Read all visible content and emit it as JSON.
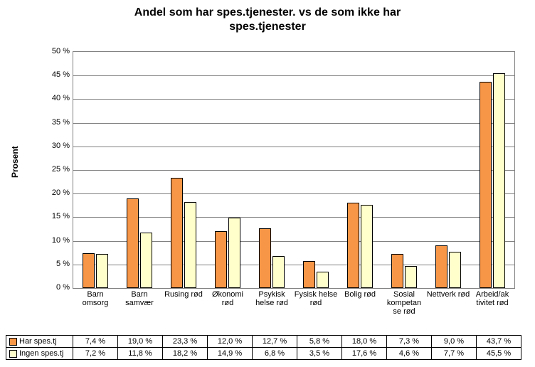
{
  "chart": {
    "type": "bar",
    "title_line1": "Andel som har spes.tjenester. vs de som ikke har",
    "title_line2": "spes.tjenester",
    "title_fontsize": 16,
    "ylabel": "Prosent",
    "ylim": [
      0,
      50
    ],
    "ytick_step": 5,
    "background_color": "#ffffff",
    "grid_color": "#808080",
    "categories": [
      "Barn omsorg",
      "Barn samvær",
      "Rusing rød",
      "Økonomi rød",
      "Psykisk helse rød",
      "Fysisk helse rød",
      "Bolig rød",
      "Sosial kompetan se rød",
      "Nettverk rød",
      "Arbeid/ak tivitet rød"
    ],
    "series": [
      {
        "name": "Har spes.tj",
        "color": "#f79646",
        "border": "#000000",
        "values": [
          7.4,
          19.0,
          23.3,
          12.0,
          12.7,
          5.8,
          18.0,
          7.3,
          9.0,
          43.7
        ],
        "labels": [
          "7,4 %",
          "19,0 %",
          "23,3 %",
          "12,0 %",
          "12,7 %",
          "5,8 %",
          "18,0 %",
          "7,3 %",
          "9,0 %",
          "43,7 %"
        ]
      },
      {
        "name": "Ingen spes.tj",
        "color": "#ffffcc",
        "border": "#000000",
        "values": [
          7.2,
          11.8,
          18.2,
          14.9,
          6.8,
          3.5,
          17.6,
          4.6,
          7.7,
          45.5
        ],
        "labels": [
          "7,2 %",
          "11,8 %",
          "18,2 %",
          "14,9 %",
          "6,8 %",
          "3,5 %",
          "17,6 %",
          "4,6 %",
          "7,7 %",
          "45,5 %"
        ]
      }
    ],
    "bar_width_ratio": 0.28,
    "bar_gap_ratio": 0.02
  }
}
